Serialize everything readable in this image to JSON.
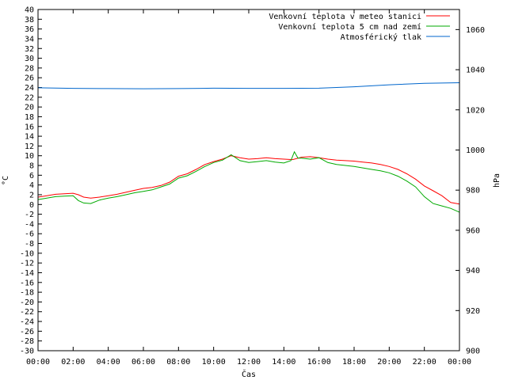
{
  "chart_data": {
    "type": "line",
    "title": "",
    "xlabel": "Čas",
    "ylabel": "°C",
    "y2label": "hPa",
    "xlim": [
      0,
      24
    ],
    "ylim": [
      -30,
      40
    ],
    "y2lim": [
      900,
      1070
    ],
    "x_ticks": [
      "00:00",
      "02:00",
      "04:00",
      "06:00",
      "08:00",
      "10:00",
      "12:00",
      "14:00",
      "16:00",
      "18:00",
      "20:00",
      "22:00",
      "00:00"
    ],
    "y_ticks": [
      40,
      38,
      36,
      34,
      32,
      30,
      28,
      26,
      24,
      22,
      20,
      18,
      16,
      14,
      12,
      10,
      8,
      6,
      4,
      2,
      0,
      -2,
      -4,
      -6,
      -8,
      -10,
      -12,
      -14,
      -16,
      -18,
      -20,
      -22,
      -24,
      -26,
      -28,
      -30
    ],
    "y2_ticks": [
      1060,
      1040,
      1020,
      1000,
      980,
      960,
      940,
      920,
      900
    ],
    "grid": false,
    "legend_position": "top-right",
    "series": [
      {
        "name": "Venkovní teplota v meteo stanici",
        "color": "#ff0000",
        "axis": "left",
        "x": [
          0,
          0.5,
          1,
          1.5,
          2,
          2.3,
          2.6,
          3,
          3.5,
          4,
          4.5,
          5,
          5.5,
          6,
          6.5,
          7,
          7.5,
          8,
          8.5,
          9,
          9.5,
          10,
          10.5,
          11,
          11.5,
          12,
          12.5,
          13,
          13.5,
          14,
          14.5,
          15,
          15.5,
          16,
          16.5,
          17,
          17.5,
          18,
          18.5,
          19,
          19.5,
          20,
          20.5,
          21,
          21.5,
          22,
          22.5,
          23,
          23.5,
          24
        ],
        "y": [
          1.5,
          1.8,
          2.1,
          2.2,
          2.3,
          2.0,
          1.5,
          1.3,
          1.5,
          1.8,
          2.1,
          2.5,
          2.9,
          3.3,
          3.5,
          3.9,
          4.6,
          5.8,
          6.3,
          7.2,
          8.2,
          8.8,
          9.3,
          10.0,
          9.6,
          9.3,
          9.4,
          9.6,
          9.4,
          9.3,
          9.2,
          9.7,
          9.8,
          9.6,
          9.3,
          9.1,
          9.0,
          8.9,
          8.7,
          8.5,
          8.2,
          7.8,
          7.2,
          6.3,
          5.2,
          3.8,
          2.8,
          1.8,
          0.4,
          0.1
        ]
      },
      {
        "name": "Venkovní teplota 5 cm nad zemí",
        "color": "#00aa00",
        "axis": "left",
        "x": [
          0,
          0.5,
          1,
          1.5,
          2,
          2.3,
          2.6,
          3,
          3.5,
          4,
          4.5,
          5,
          5.5,
          6,
          6.5,
          7,
          7.5,
          8,
          8.5,
          9,
          9.5,
          10,
          10.5,
          11,
          11.5,
          12,
          12.5,
          13,
          13.5,
          14,
          14.4,
          14.6,
          14.8,
          15,
          15.5,
          16,
          16.5,
          17,
          17.5,
          18,
          18.5,
          19,
          19.5,
          20,
          20.5,
          21,
          21.5,
          22,
          22.5,
          23,
          23.5,
          24
        ],
        "y": [
          1.0,
          1.3,
          1.6,
          1.7,
          1.8,
          0.8,
          0.3,
          0.2,
          0.9,
          1.3,
          1.6,
          2.0,
          2.4,
          2.7,
          3.0,
          3.6,
          4.2,
          5.4,
          5.9,
          6.8,
          7.8,
          8.6,
          9.1,
          10.2,
          9.0,
          8.6,
          8.8,
          9.0,
          8.7,
          8.5,
          9.0,
          10.8,
          9.5,
          9.5,
          9.3,
          9.6,
          8.6,
          8.2,
          8.0,
          7.8,
          7.5,
          7.2,
          6.9,
          6.5,
          5.8,
          4.8,
          3.6,
          1.6,
          0.2,
          -0.3,
          -0.8,
          -1.6
        ]
      },
      {
        "name": "Atmosférický tlak",
        "color": "#0066cc",
        "axis": "right",
        "x": [
          0,
          2,
          4,
          6,
          8,
          10,
          12,
          14,
          16,
          18,
          20,
          22,
          24
        ],
        "y": [
          1031.0,
          1030.7,
          1030.6,
          1030.5,
          1030.6,
          1030.8,
          1030.7,
          1030.7,
          1030.8,
          1031.5,
          1032.5,
          1033.2,
          1033.5
        ]
      }
    ]
  }
}
